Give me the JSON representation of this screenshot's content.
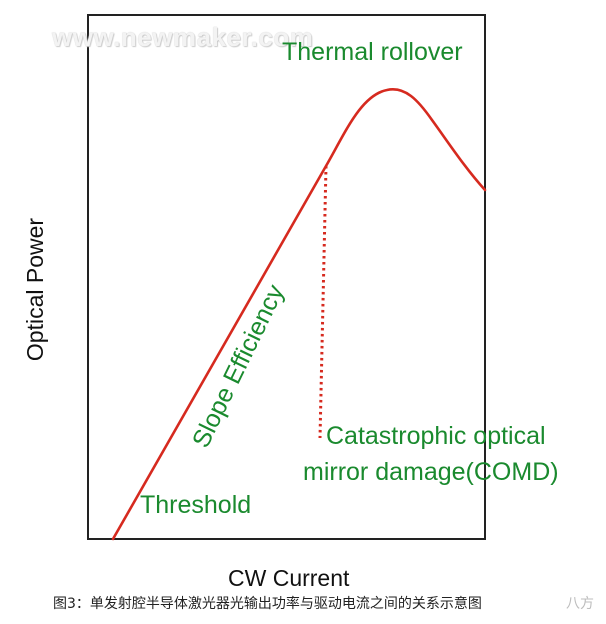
{
  "watermark": "www.newmaker.com",
  "labels": {
    "thermal_rollover": "Thermal rollover",
    "slope_efficiency": "Slope Efficiency",
    "threshold": "Threshold",
    "comd_line1": "Catastrophic optical",
    "comd_line2": "mirror damage(COMD)"
  },
  "axes": {
    "y_label": "Optical Power",
    "x_label": "CW Current"
  },
  "caption": "图3：单发射腔半导体激光器光输出功率与驱动电流之间的关系示意图",
  "caption_tail": "八方",
  "colors": {
    "curve": "#d62a1f",
    "label": "#1a8a2e",
    "frame": "#222222"
  }
}
